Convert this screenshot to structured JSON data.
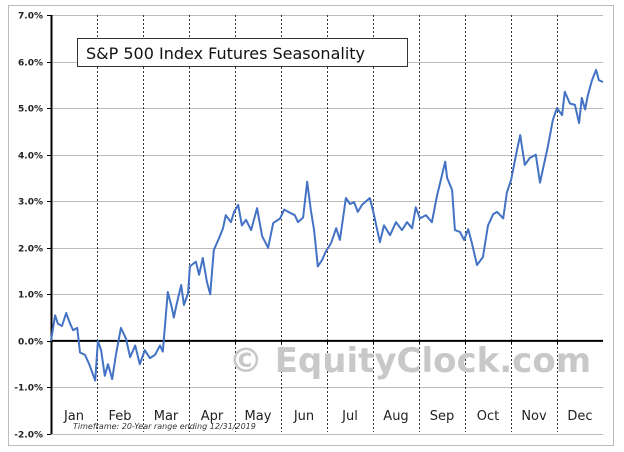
{
  "chart_data": {
    "type": "line",
    "title": "S&P 500 Index Futures Seasonality",
    "watermark": "© EquityClock.com",
    "footnote": "Timeframe:  20-Year range ending 12/31/2019",
    "xlabel": "",
    "ylabel": "",
    "ylim": [
      -2,
      7
    ],
    "xlim": [
      0,
      12
    ],
    "y_ticks": [
      "-2.0%",
      "-1.0%",
      "0.0%",
      "1.0%",
      "2.0%",
      "3.0%",
      "4.0%",
      "5.0%",
      "6.0%",
      "7.0%"
    ],
    "y_tick_values": [
      -2,
      -1,
      0,
      1,
      2,
      3,
      4,
      5,
      6,
      7
    ],
    "categories": [
      "Jan",
      "Feb",
      "Mar",
      "Apr",
      "May",
      "Jun",
      "Jul",
      "Aug",
      "Sep",
      "Oct",
      "Nov",
      "Dec"
    ],
    "grid": true,
    "line_color": "#4472c4",
    "series": [
      {
        "name": "S&P 500 Index Futures Seasonality (%)",
        "x": [
          0,
          0.09,
          0.15,
          0.24,
          0.33,
          0.41,
          0.48,
          0.57,
          0.63,
          0.74,
          0.83,
          0.96,
          1.02,
          1.09,
          1.17,
          1.24,
          1.33,
          1.41,
          1.52,
          1.63,
          1.72,
          1.83,
          1.93,
          2.04,
          2.15,
          2.26,
          2.37,
          2.43,
          2.54,
          2.63,
          2.67,
          2.74,
          2.83,
          2.89,
          2.98,
          3.02,
          3.15,
          3.22,
          3.3,
          3.39,
          3.46,
          3.54,
          3.65,
          3.74,
          3.8,
          3.91,
          3.98,
          4.07,
          4.15,
          4.24,
          4.35,
          4.48,
          4.59,
          4.72,
          4.83,
          4.98,
          5.07,
          5.2,
          5.3,
          5.37,
          5.48,
          5.57,
          5.65,
          5.72,
          5.8,
          5.89,
          5.98,
          6.09,
          6.2,
          6.28,
          6.41,
          6.5,
          6.59,
          6.67,
          6.76,
          6.93,
          7.0,
          7.15,
          7.24,
          7.37,
          7.5,
          7.63,
          7.74,
          7.85,
          7.93,
          8.02,
          8.15,
          8.28,
          8.39,
          8.5,
          8.57,
          8.61,
          8.72,
          8.78,
          8.89,
          8.98,
          9.07,
          9.15,
          9.26,
          9.39,
          9.5,
          9.61,
          9.7,
          9.83,
          9.91,
          10.0,
          10.13,
          10.2,
          10.3,
          10.41,
          10.54,
          10.63,
          10.8,
          10.91,
          11.0,
          11.11,
          11.17,
          11.28,
          11.39,
          11.48,
          11.54,
          11.61,
          11.67,
          11.76,
          11.85,
          11.91,
          12
        ],
        "values": [
          0,
          0.55,
          0.37,
          0.32,
          0.6,
          0.38,
          0.23,
          0.28,
          -0.25,
          -0.3,
          -0.5,
          -0.85,
          0,
          -0.2,
          -0.75,
          -0.5,
          -0.82,
          -0.3,
          0.28,
          0.05,
          -0.35,
          -0.1,
          -0.5,
          -0.2,
          -0.37,
          -0.3,
          -0.1,
          -0.23,
          1.05,
          0.7,
          0.5,
          0.82,
          1.2,
          0.77,
          1.03,
          1.6,
          1.7,
          1.42,
          1.78,
          1.27,
          1.0,
          1.95,
          2.2,
          2.42,
          2.7,
          2.55,
          2.77,
          2.92,
          2.48,
          2.6,
          2.38,
          2.85,
          2.25,
          2.0,
          2.53,
          2.63,
          2.82,
          2.75,
          2.7,
          2.55,
          2.65,
          3.42,
          2.8,
          2.38,
          1.6,
          1.73,
          1.93,
          2.1,
          2.42,
          2.17,
          3.07,
          2.94,
          2.98,
          2.77,
          2.92,
          3.07,
          2.8,
          2.12,
          2.48,
          2.27,
          2.55,
          2.38,
          2.55,
          2.42,
          2.87,
          2.63,
          2.7,
          2.55,
          3.11,
          3.56,
          3.85,
          3.5,
          3.24,
          2.38,
          2.34,
          2.17,
          2.4,
          2.1,
          1.63,
          1.8,
          2.48,
          2.72,
          2.77,
          2.63,
          3.19,
          3.45,
          4.1,
          4.42,
          3.78,
          3.93,
          4.0,
          3.4,
          4.17,
          4.75,
          5.0,
          4.85,
          5.35,
          5.1,
          5.07,
          4.68,
          5.22,
          4.97,
          5.27,
          5.6,
          5.82,
          5.6,
          5.56
        ]
      }
    ]
  }
}
